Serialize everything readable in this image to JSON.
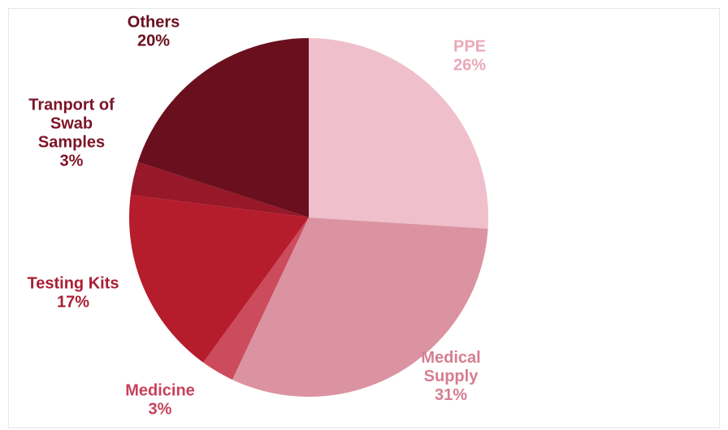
{
  "chart_data": {
    "type": "pie",
    "title": "",
    "series": [
      {
        "values": [
          26,
          31,
          3,
          17,
          3,
          20
        ]
      }
    ],
    "slices": [
      {
        "label_lines": [
          "PPE"
        ],
        "value": 26,
        "value_label": "26%",
        "color": "#efc0cc",
        "label_color": "#e9a9b8"
      },
      {
        "label_lines": [
          "Medical",
          "Supply"
        ],
        "value": 31,
        "value_label": "31%",
        "color": "#dc93a1",
        "label_color": "#d57d91"
      },
      {
        "label_lines": [
          "Medicine"
        ],
        "value": 3,
        "value_label": "3%",
        "color": "#cc4b5d",
        "label_color": "#c8415a"
      },
      {
        "label_lines": [
          "Testing Kits"
        ],
        "value": 17,
        "value_label": "17%",
        "color": "#b51c2c",
        "label_color": "#a81e35"
      },
      {
        "label_lines": [
          "Tranport of",
          "Swab",
          "Samples"
        ],
        "value": 3,
        "value_label": "3%",
        "color": "#961829",
        "label_color": "#7d1428"
      },
      {
        "label_lines": [
          "Others"
        ],
        "value": 20,
        "value_label": "20%",
        "color": "#6a0f1e",
        "label_color": "#6a0f1e"
      }
    ],
    "legend": "none",
    "start_angle": "12 o'clock",
    "direction": "clockwise"
  }
}
